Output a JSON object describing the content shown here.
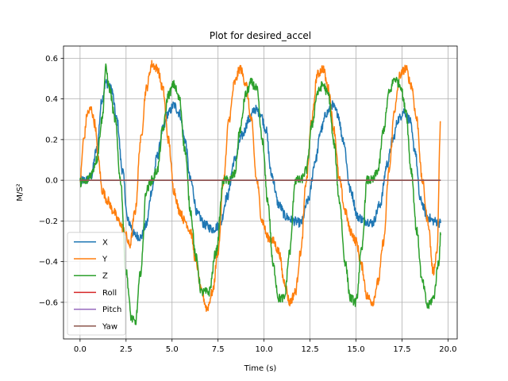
{
  "chart_data": {
    "type": "line",
    "title": "Plot for desired_accel",
    "xlabel": "Time (s)",
    "ylabel": "M/S²",
    "xlim": [
      -0.9,
      20.5
    ],
    "ylim": [
      -0.78,
      0.66
    ],
    "xticks": [
      0.0,
      2.5,
      5.0,
      7.5,
      10.0,
      12.5,
      15.0,
      17.5,
      20.0
    ],
    "xtick_labels": [
      "0.0",
      "2.5",
      "5.0",
      "7.5",
      "10.0",
      "12.5",
      "15.0",
      "17.5",
      "20.0"
    ],
    "yticks": [
      -0.6,
      -0.4,
      -0.2,
      0.0,
      0.2,
      0.4,
      0.6
    ],
    "ytick_labels": [
      "−0.6",
      "−0.4",
      "−0.2",
      "0.0",
      "0.2",
      "0.4",
      "0.6"
    ],
    "grid": true,
    "legend_position": "lower-left",
    "series": [
      {
        "name": "X",
        "color": "#1f77b4",
        "x": [
          0.0,
          0.3,
          0.6,
          0.9,
          1.2,
          1.4,
          1.7,
          2.0,
          2.3,
          2.6,
          3.0,
          3.3,
          3.6,
          3.9,
          4.2,
          4.5,
          4.8,
          5.1,
          5.4,
          5.7,
          6.0,
          6.4,
          6.8,
          7.2,
          7.6,
          8.0,
          8.4,
          8.8,
          9.2,
          9.5,
          9.8,
          10.1,
          10.4,
          10.8,
          11.2,
          11.6,
          12.0,
          12.4,
          12.8,
          13.1,
          13.4,
          13.7,
          14.0,
          14.3,
          14.7,
          15.1,
          15.5,
          15.9,
          16.3,
          16.7,
          17.0,
          17.3,
          17.6,
          17.9,
          18.2,
          18.5,
          18.9,
          19.2,
          19.6
        ],
        "y": [
          0.0,
          0.0,
          0.02,
          0.15,
          0.4,
          0.48,
          0.45,
          0.3,
          0.05,
          -0.2,
          -0.27,
          -0.28,
          -0.22,
          -0.05,
          0.12,
          0.25,
          0.33,
          0.37,
          0.33,
          0.2,
          0.0,
          -0.17,
          -0.22,
          -0.24,
          -0.22,
          -0.08,
          0.1,
          0.22,
          0.3,
          0.35,
          0.33,
          0.25,
          0.03,
          -0.12,
          -0.18,
          -0.2,
          -0.21,
          -0.1,
          0.1,
          0.25,
          0.33,
          0.37,
          0.33,
          0.2,
          -0.05,
          -0.18,
          -0.2,
          -0.21,
          -0.12,
          0.08,
          0.2,
          0.3,
          0.34,
          0.3,
          0.15,
          -0.1,
          -0.18,
          -0.2,
          -0.21
        ]
      },
      {
        "name": "Y",
        "color": "#ff7f0e",
        "x": [
          0.0,
          0.2,
          0.4,
          0.6,
          0.8,
          1.0,
          1.2,
          1.5,
          1.8,
          2.1,
          2.4,
          2.7,
          3.0,
          3.3,
          3.6,
          3.9,
          4.2,
          4.5,
          4.8,
          5.1,
          5.4,
          5.7,
          6.0,
          6.3,
          6.6,
          6.9,
          7.2,
          7.5,
          7.8,
          8.1,
          8.4,
          8.7,
          9.0,
          9.3,
          9.6,
          9.9,
          10.2,
          10.5,
          10.8,
          11.1,
          11.4,
          11.7,
          12.0,
          12.3,
          12.6,
          12.9,
          13.2,
          13.5,
          13.8,
          14.1,
          14.4,
          14.7,
          15.0,
          15.3,
          15.6,
          15.9,
          16.2,
          16.5,
          16.8,
          17.1,
          17.4,
          17.7,
          18.0,
          18.3,
          18.6,
          18.9,
          19.2,
          19.4,
          19.6
        ],
        "y": [
          0.0,
          0.2,
          0.33,
          0.35,
          0.28,
          0.1,
          -0.05,
          -0.1,
          -0.15,
          -0.2,
          -0.25,
          -0.32,
          -0.15,
          0.2,
          0.45,
          0.57,
          0.55,
          0.45,
          0.2,
          -0.05,
          -0.15,
          -0.2,
          -0.25,
          -0.4,
          -0.55,
          -0.63,
          -0.55,
          -0.35,
          0.0,
          0.3,
          0.48,
          0.55,
          0.48,
          0.3,
          0.0,
          -0.2,
          -0.28,
          -0.3,
          -0.35,
          -0.5,
          -0.6,
          -0.55,
          -0.35,
          0.0,
          0.3,
          0.52,
          0.55,
          0.45,
          0.25,
          0.0,
          -0.15,
          -0.25,
          -0.3,
          -0.42,
          -0.57,
          -0.6,
          -0.5,
          -0.3,
          0.05,
          0.35,
          0.52,
          0.55,
          0.47,
          0.3,
          0.0,
          -0.2,
          -0.45,
          -0.35,
          0.29
        ]
      },
      {
        "name": "Z",
        "color": "#2ca02c",
        "x": [
          0.0,
          0.3,
          0.6,
          0.9,
          1.2,
          1.4,
          1.6,
          1.9,
          2.2,
          2.5,
          2.8,
          3.0,
          3.3,
          3.6,
          3.9,
          4.2,
          4.5,
          4.8,
          5.1,
          5.4,
          5.7,
          6.0,
          6.3,
          6.6,
          7.0,
          7.4,
          7.8,
          8.1,
          8.4,
          8.7,
          9.0,
          9.3,
          9.6,
          9.9,
          10.2,
          10.5,
          10.8,
          11.1,
          11.4,
          11.7,
          12.0,
          12.3,
          12.6,
          12.9,
          13.2,
          13.5,
          13.8,
          14.1,
          14.4,
          14.7,
          15.0,
          15.3,
          15.6,
          15.9,
          16.2,
          16.5,
          16.8,
          17.1,
          17.4,
          17.7,
          18.0,
          18.3,
          18.6,
          18.9,
          19.2,
          19.5,
          19.6
        ],
        "y": [
          -0.01,
          -0.01,
          0.03,
          0.1,
          0.3,
          0.55,
          0.45,
          0.3,
          0.0,
          -0.45,
          -0.68,
          -0.7,
          -0.45,
          -0.05,
          0.0,
          0.05,
          0.25,
          0.42,
          0.47,
          0.4,
          0.15,
          -0.15,
          -0.38,
          -0.55,
          -0.55,
          -0.35,
          0.0,
          0.0,
          0.03,
          0.25,
          0.42,
          0.48,
          0.45,
          0.2,
          -0.1,
          -0.42,
          -0.58,
          -0.58,
          -0.35,
          0.0,
          0.0,
          0.05,
          0.27,
          0.43,
          0.47,
          0.42,
          0.18,
          -0.1,
          -0.4,
          -0.58,
          -0.6,
          -0.35,
          0.0,
          0.0,
          0.05,
          0.25,
          0.43,
          0.5,
          0.47,
          0.35,
          0.05,
          -0.25,
          -0.5,
          -0.62,
          -0.58,
          -0.4,
          -0.27
        ]
      },
      {
        "name": "Roll",
        "color": "#d62728",
        "x": [
          0.0,
          19.6
        ],
        "y": [
          0.0,
          0.0
        ]
      },
      {
        "name": "Pitch",
        "color": "#9467bd",
        "x": [
          0.0,
          19.6
        ],
        "y": [
          0.0,
          0.0
        ]
      },
      {
        "name": "Yaw",
        "color": "#8c564b",
        "x": [
          0.0,
          19.6
        ],
        "y": [
          0.0,
          0.0
        ]
      }
    ]
  }
}
